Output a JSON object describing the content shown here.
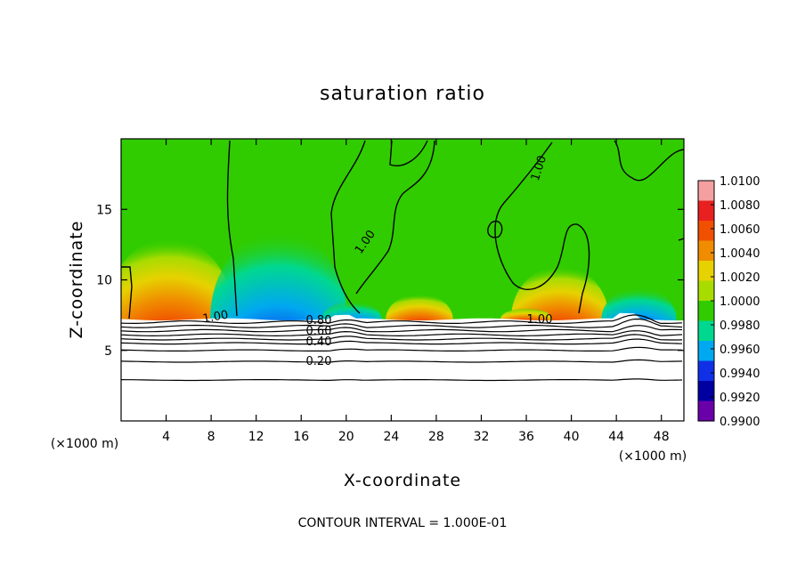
{
  "chart_data": {
    "type": "heatmap",
    "title": "saturation ratio",
    "xlabel": "X-coordinate",
    "ylabel": "Z-coordinate",
    "x_unit_label": "(×1000 m)",
    "z_unit_label": "(×1000 m)",
    "xlim": [
      0,
      50
    ],
    "ylim": [
      0,
      20
    ],
    "x_ticks": [
      4,
      8,
      12,
      16,
      20,
      24,
      28,
      32,
      36,
      40,
      44,
      48
    ],
    "y_ticks": [
      5,
      10,
      15
    ],
    "x_tick_labels": [
      "4",
      "8",
      "12",
      "16",
      "20",
      "24",
      "28",
      "32",
      "36",
      "40",
      "44",
      "48"
    ],
    "y_tick_labels": [
      "5",
      "10",
      "15"
    ],
    "colorbar": {
      "min": 0.99,
      "max": 1.01,
      "ticks": [
        1.01,
        1.008,
        1.006,
        1.004,
        1.002,
        1.0,
        0.998,
        0.996,
        0.994,
        0.992,
        0.99
      ],
      "tick_labels": [
        "1.0100",
        "1.0080",
        "1.0060",
        "1.0040",
        "1.0020",
        "1.0000",
        "0.9980",
        "0.9960",
        "0.9940",
        "0.9920",
        "0.9900"
      ],
      "colors": [
        "#f4a0a0",
        "#e82020",
        "#f05000",
        "#f08c00",
        "#e6d200",
        "#a8dc00",
        "#30cc00",
        "#00d890",
        "#00a8f0",
        "#1030e8",
        "#0000a0",
        "#6a00a8"
      ]
    },
    "features": [
      {
        "kind": "moist",
        "x": 4.3,
        "z_base": 7.2,
        "z_top": 13.0,
        "peak": 1.008
      },
      {
        "kind": "moist",
        "x": 26.5,
        "z_base": 7.2,
        "z_top": 9.0,
        "peak": 1.006
      },
      {
        "kind": "moist",
        "x": 39.0,
        "z_base": 7.2,
        "z_top": 11.0,
        "peak": 1.004
      },
      {
        "kind": "moist",
        "x": 36.0,
        "z_base": 7.2,
        "z_top": 8.0,
        "peak": 1.004
      },
      {
        "kind": "dry",
        "x": 14.0,
        "z_base": 7.2,
        "z_top": 13.5,
        "peak": 0.992
      },
      {
        "kind": "dry",
        "x": 20.5,
        "z_base": 7.2,
        "z_top": 8.5,
        "peak": 0.994
      },
      {
        "kind": "dry",
        "x": 46.0,
        "z_base": 7.2,
        "z_top": 9.5,
        "peak": 0.994
      }
    ],
    "contour_interval": 0.1,
    "contour_labels": [
      "1.00",
      "1.00",
      "1.00",
      "1.00",
      "0.80",
      "0.60",
      "0.40",
      "0.20"
    ],
    "cloud_base_z": 7.2
  },
  "footer": {
    "contour_interval_text": "CONTOUR INTERVAL = 1.000E-01"
  }
}
